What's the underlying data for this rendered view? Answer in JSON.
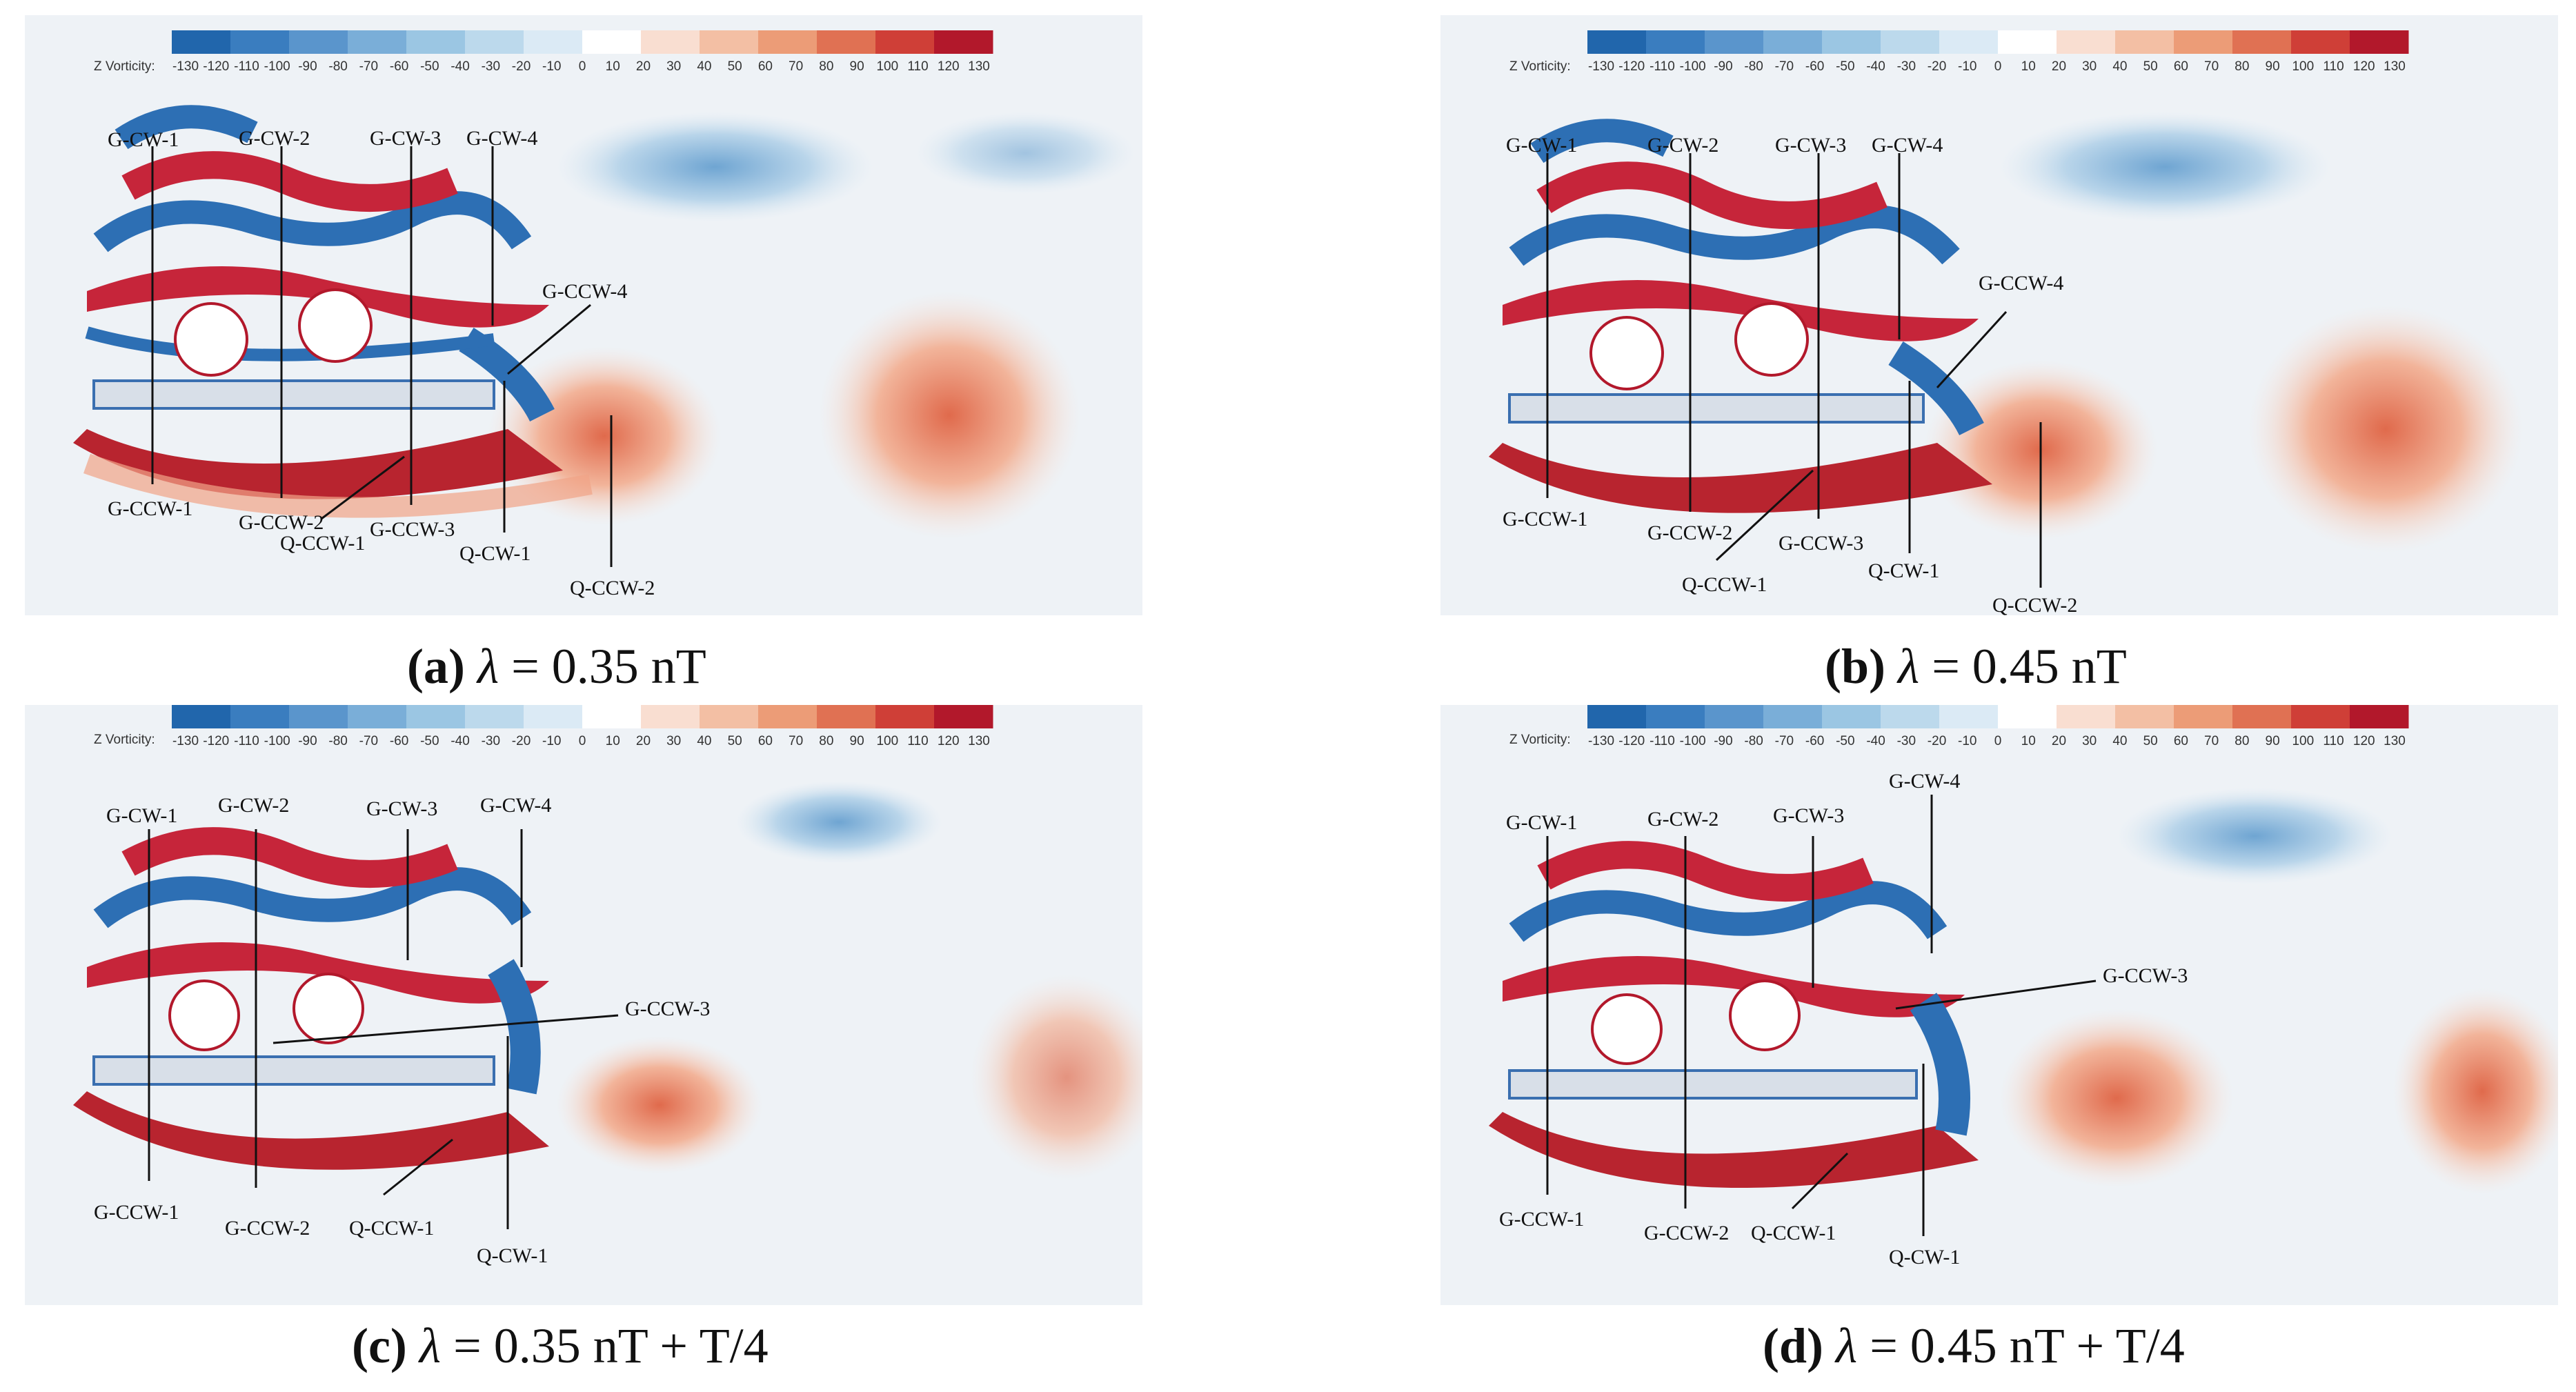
{
  "colorbar": {
    "title": "Z Vorticity:",
    "ticks": [
      "-130",
      "-120",
      "-110",
      "-100",
      "-90",
      "-80",
      "-70",
      "-60",
      "-50",
      "-40",
      "-30",
      "-20",
      "-10",
      "0",
      "10",
      "20",
      "30",
      "40",
      "50",
      "60",
      "70",
      "80",
      "90",
      "100",
      "110",
      "120",
      "130"
    ],
    "colors": [
      "#2166ac",
      "#3a7dbf",
      "#5a95cc",
      "#7aaed8",
      "#9bc6e3",
      "#bcd9ec",
      "#dbeaf5",
      "#ffffff",
      "#f9ded1",
      "#f3bfa4",
      "#ec9c77",
      "#e07153",
      "#cf3f37",
      "#b2182b"
    ]
  },
  "panels": [
    {
      "id": "a",
      "caption_letter": "(a)",
      "caption_symbol": "λ",
      "caption_text": " = 0.35 nT",
      "labels": {
        "gcw1": "G-CW-1",
        "gcw2": "G-CW-2",
        "gcw3": "G-CW-3",
        "gcw4": "G-CW-4",
        "gccw4": "G-CCW-4",
        "gccw1": "G-CCW-1",
        "gccw2": "G-CCW-2",
        "gccw3": "G-CCW-3",
        "qccw1": "Q-CCW-1",
        "qcw1": "Q-CW-1",
        "qccw2": "Q-CCW-2"
      }
    },
    {
      "id": "b",
      "caption_letter": "(b)",
      "caption_symbol": "λ",
      "caption_text": " = 0.45 nT",
      "labels": {
        "gcw1": "G-CW-1",
        "gcw2": "G-CW-2",
        "gcw3": "G-CW-3",
        "gcw4": "G-CW-4",
        "gccw4": "G-CCW-4",
        "gccw1": "G-CCW-1",
        "gccw2": "G-CCW-2",
        "gccw3": "G-CCW-3",
        "qccw1": "Q-CCW-1",
        "qcw1": "Q-CW-1",
        "qccw2": "Q-CCW-2"
      }
    },
    {
      "id": "c",
      "caption_letter": "(c)",
      "caption_symbol": "λ",
      "caption_text": " = 0.35 nT + T/4",
      "labels": {
        "gcw1": "G-CW-1",
        "gcw2": "G-CW-2",
        "gcw3": "G-CW-3",
        "gcw4": "G-CW-4",
        "gccw3": "G-CCW-3",
        "gccw1": "G-CCW-1",
        "gccw2": "G-CCW-2",
        "qccw1": "Q-CCW-1",
        "qcw1": "Q-CW-1"
      }
    },
    {
      "id": "d",
      "caption_letter": "(d)",
      "caption_symbol": "λ",
      "caption_text": " = 0.45 nT + T/4",
      "labels": {
        "gcw1": "G-CW-1",
        "gcw2": "G-CW-2",
        "gcw3": "G-CW-3",
        "gcw4": "G-CW-4",
        "gccw3": "G-CCW-3",
        "gccw1": "G-CCW-1",
        "gccw2": "G-CCW-2",
        "qccw1": "Q-CCW-1",
        "qcw1": "Q-CW-1"
      }
    }
  ]
}
